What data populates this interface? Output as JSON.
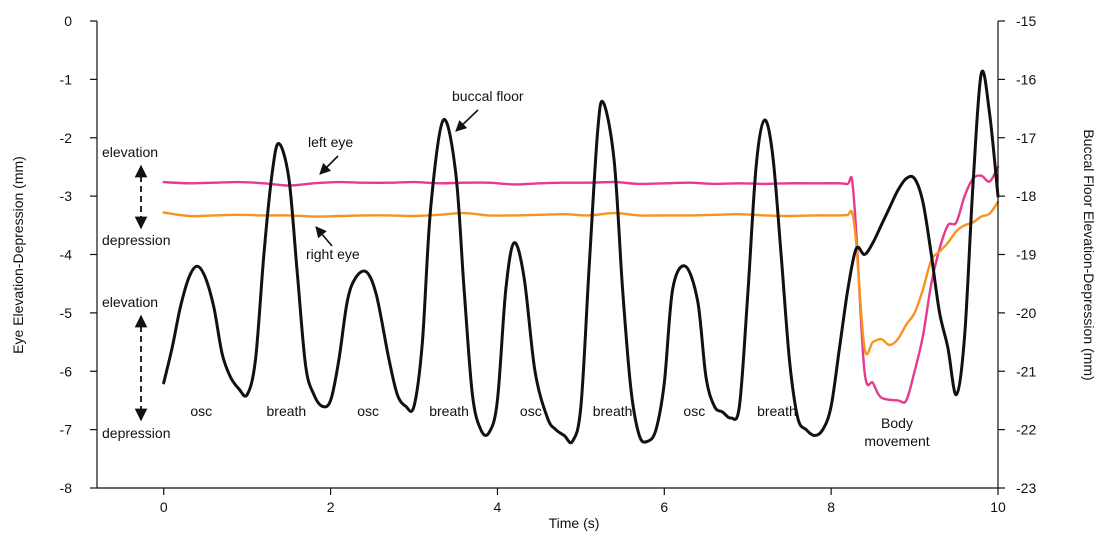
{
  "chart_data": {
    "type": "line",
    "xlabel": "Time (s)",
    "ylabel_left": "Eye Elevation-Depression (mm)",
    "ylabel_right": "Buccal Floor Elevation-Depression (mm)",
    "xlim": [
      -0.8,
      10
    ],
    "ylim_left": [
      -8,
      0
    ],
    "ylim_right": [
      -23,
      -15
    ],
    "x_ticks": [
      "0",
      "2",
      "4",
      "6",
      "8",
      "10"
    ],
    "y_ticks_left": [
      "0",
      "-1",
      "-2",
      "-3",
      "-4",
      "-5",
      "-6",
      "-7",
      "-8"
    ],
    "y_ticks_right": [
      "-15",
      "-16",
      "-17",
      "-18",
      "-19",
      "-20",
      "-21",
      "-22",
      "-23"
    ],
    "grid": false,
    "series": [
      {
        "name": "left eye",
        "axis": "left",
        "color": "#e8398f",
        "x": [
          0,
          0.3,
          0.6,
          0.9,
          1.2,
          1.5,
          1.8,
          2.1,
          2.4,
          2.7,
          3.0,
          3.3,
          3.6,
          3.9,
          4.2,
          4.5,
          4.8,
          5.1,
          5.4,
          5.7,
          6.0,
          6.3,
          6.6,
          6.9,
          7.2,
          7.5,
          7.8,
          8.1,
          8.2,
          8.25,
          8.3,
          8.4,
          8.5,
          8.6,
          8.8,
          8.9,
          9.0,
          9.1,
          9.2,
          9.3,
          9.4,
          9.5,
          9.6,
          9.7,
          9.8,
          9.9,
          10.0
        ],
        "y": [
          -2.76,
          -2.78,
          -2.77,
          -2.76,
          -2.78,
          -2.82,
          -2.78,
          -2.76,
          -2.77,
          -2.77,
          -2.76,
          -2.78,
          -2.77,
          -2.77,
          -2.8,
          -2.78,
          -2.77,
          -2.77,
          -2.76,
          -2.79,
          -2.78,
          -2.77,
          -2.79,
          -2.78,
          -2.79,
          -2.78,
          -2.78,
          -2.78,
          -2.79,
          -2.72,
          -3.6,
          -6.0,
          -6.2,
          -6.45,
          -6.5,
          -6.5,
          -6.0,
          -5.4,
          -4.5,
          -3.9,
          -3.5,
          -3.45,
          -3.0,
          -2.7,
          -2.65,
          -2.75,
          -2.5
        ]
      },
      {
        "name": "right eye",
        "axis": "left",
        "color": "#f5941f",
        "x": [
          0,
          0.3,
          0.6,
          0.9,
          1.2,
          1.5,
          1.8,
          2.1,
          2.4,
          2.7,
          3.0,
          3.3,
          3.6,
          3.9,
          4.2,
          4.5,
          4.8,
          5.1,
          5.4,
          5.7,
          6.0,
          6.3,
          6.6,
          6.9,
          7.2,
          7.5,
          7.8,
          8.1,
          8.2,
          8.25,
          8.3,
          8.4,
          8.5,
          8.6,
          8.7,
          8.8,
          8.9,
          9.0,
          9.1,
          9.2,
          9.3,
          9.4,
          9.5,
          9.6,
          9.7,
          9.8,
          9.9,
          10.0
        ],
        "y": [
          -3.28,
          -3.34,
          -3.33,
          -3.32,
          -3.33,
          -3.33,
          -3.35,
          -3.34,
          -3.33,
          -3.33,
          -3.34,
          -3.32,
          -3.29,
          -3.33,
          -3.33,
          -3.32,
          -3.31,
          -3.33,
          -3.29,
          -3.33,
          -3.33,
          -3.33,
          -3.32,
          -3.31,
          -3.33,
          -3.34,
          -3.33,
          -3.33,
          -3.32,
          -3.28,
          -3.8,
          -5.6,
          -5.5,
          -5.45,
          -5.55,
          -5.45,
          -5.2,
          -5.0,
          -4.6,
          -4.1,
          -3.95,
          -3.8,
          -3.6,
          -3.5,
          -3.45,
          -3.35,
          -3.3,
          -3.1
        ]
      },
      {
        "name": "buccal floor",
        "axis": "right",
        "color": "#111111",
        "x": [
          0,
          0.1,
          0.2,
          0.3,
          0.4,
          0.5,
          0.6,
          0.7,
          0.8,
          0.9,
          1.0,
          1.1,
          1.2,
          1.3,
          1.38,
          1.5,
          1.6,
          1.7,
          1.8,
          1.9,
          2.0,
          2.1,
          2.2,
          2.3,
          2.43,
          2.55,
          2.7,
          2.8,
          2.9,
          3.0,
          3.1,
          3.2,
          3.35,
          3.5,
          3.6,
          3.7,
          3.8,
          3.9,
          4.0,
          4.1,
          4.2,
          4.32,
          4.45,
          4.6,
          4.7,
          4.8,
          4.9,
          5.0,
          5.1,
          5.2,
          5.27,
          5.4,
          5.5,
          5.6,
          5.7,
          5.8,
          5.9,
          6.0,
          6.1,
          6.25,
          6.4,
          6.5,
          6.6,
          6.7,
          6.8,
          6.9,
          7.0,
          7.1,
          7.2,
          7.3,
          7.4,
          7.5,
          7.6,
          7.7,
          7.8,
          7.9,
          8.0,
          8.1,
          8.2,
          8.3,
          8.4,
          8.5,
          8.6,
          8.7,
          8.8,
          8.9,
          9.0,
          9.1,
          9.2,
          9.3,
          9.4,
          9.5,
          9.6,
          9.7,
          9.8,
          9.9,
          10.0
        ],
        "y": [
          -21.2,
          -20.6,
          -19.9,
          -19.4,
          -19.2,
          -19.4,
          -19.9,
          -20.7,
          -21.1,
          -21.3,
          -21.4,
          -20.8,
          -19.0,
          -17.6,
          -17.1,
          -17.7,
          -19.3,
          -20.9,
          -21.4,
          -21.6,
          -21.5,
          -20.8,
          -19.8,
          -19.4,
          -19.3,
          -19.7,
          -20.8,
          -21.4,
          -21.6,
          -21.6,
          -20.5,
          -18.2,
          -16.7,
          -17.6,
          -19.6,
          -21.4,
          -22.0,
          -22.05,
          -21.5,
          -19.6,
          -18.8,
          -19.4,
          -21.0,
          -21.8,
          -22.0,
          -22.1,
          -22.2,
          -21.6,
          -19.2,
          -16.9,
          -16.4,
          -17.4,
          -19.6,
          -21.3,
          -22.1,
          -22.2,
          -22.0,
          -21.2,
          -19.6,
          -19.2,
          -19.8,
          -21.1,
          -21.6,
          -21.7,
          -21.8,
          -21.6,
          -19.7,
          -17.5,
          -16.7,
          -17.3,
          -19.0,
          -20.8,
          -21.8,
          -22.0,
          -22.1,
          -22.0,
          -21.6,
          -20.6,
          -19.6,
          -18.9,
          -19.0,
          -18.8,
          -18.5,
          -18.2,
          -17.9,
          -17.7,
          -17.7,
          -18.1,
          -19.0,
          -20.0,
          -20.6,
          -21.4,
          -20.4,
          -17.8,
          -15.9,
          -16.6,
          -18.0
        ]
      }
    ],
    "annotations": {
      "buccal_floor": "buccal floor",
      "left_eye": "left eye",
      "right_eye": "right eye",
      "elevation_top": "elevation",
      "depression_top": "depression",
      "elevation_bottom": "elevation",
      "depression_bottom": "depression",
      "segment_labels": [
        "osc",
        "breath",
        "osc",
        "breath",
        "osc",
        "breath",
        "osc",
        "breath"
      ],
      "segment_times": [
        0.45,
        1.47,
        2.45,
        3.42,
        4.4,
        5.38,
        6.36,
        7.35
      ],
      "body_movement_1": "Body",
      "body_movement_2": "movement"
    }
  }
}
